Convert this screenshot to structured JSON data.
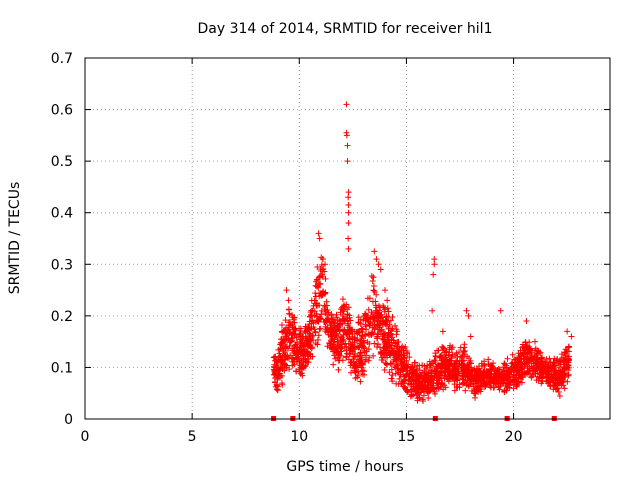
{
  "chart_data": {
    "type": "scatter",
    "title": "Day 314 of 2014, SRMTID for receiver hil1",
    "xlabel": "GPS time / hours",
    "ylabel": "SRMTID / TECUs",
    "xlim": [
      0,
      24.5
    ],
    "ylim": [
      0,
      0.7
    ],
    "xticks": [
      0,
      5,
      10,
      15,
      20
    ],
    "yticks": [
      0,
      0.1,
      0.2,
      0.3,
      0.4,
      0.5,
      0.6,
      0.7
    ],
    "grid": true,
    "color": "#ff0000",
    "marker": "+",
    "gap_markers_x": [
      8.8,
      9.7,
      16.35,
      19.7,
      21.9
    ],
    "envelope": [
      {
        "x": 8.8,
        "lo": 0.03,
        "hi": 0.14
      },
      {
        "x": 9.2,
        "lo": 0.05,
        "hi": 0.2
      },
      {
        "x": 9.6,
        "lo": 0.08,
        "hi": 0.24
      },
      {
        "x": 10.0,
        "lo": 0.06,
        "hi": 0.18
      },
      {
        "x": 10.4,
        "lo": 0.1,
        "hi": 0.2
      },
      {
        "x": 10.8,
        "lo": 0.12,
        "hi": 0.3
      },
      {
        "x": 11.1,
        "lo": 0.16,
        "hi": 0.33
      },
      {
        "x": 11.4,
        "lo": 0.12,
        "hi": 0.22
      },
      {
        "x": 11.8,
        "lo": 0.08,
        "hi": 0.2
      },
      {
        "x": 12.1,
        "lo": 0.12,
        "hi": 0.26
      },
      {
        "x": 12.5,
        "lo": 0.07,
        "hi": 0.2
      },
      {
        "x": 12.9,
        "lo": 0.06,
        "hi": 0.2
      },
      {
        "x": 13.4,
        "lo": 0.1,
        "hi": 0.3
      },
      {
        "x": 13.8,
        "lo": 0.09,
        "hi": 0.24
      },
      {
        "x": 14.3,
        "lo": 0.07,
        "hi": 0.22
      },
      {
        "x": 14.8,
        "lo": 0.05,
        "hi": 0.16
      },
      {
        "x": 15.3,
        "lo": 0.03,
        "hi": 0.12
      },
      {
        "x": 15.8,
        "lo": 0.03,
        "hi": 0.11
      },
      {
        "x": 16.3,
        "lo": 0.04,
        "hi": 0.13
      },
      {
        "x": 16.8,
        "lo": 0.06,
        "hi": 0.15
      },
      {
        "x": 17.3,
        "lo": 0.05,
        "hi": 0.14
      },
      {
        "x": 17.8,
        "lo": 0.05,
        "hi": 0.15
      },
      {
        "x": 18.2,
        "lo": 0.04,
        "hi": 0.1
      },
      {
        "x": 18.7,
        "lo": 0.05,
        "hi": 0.12
      },
      {
        "x": 19.2,
        "lo": 0.05,
        "hi": 0.11
      },
      {
        "x": 19.7,
        "lo": 0.04,
        "hi": 0.12
      },
      {
        "x": 20.1,
        "lo": 0.05,
        "hi": 0.13
      },
      {
        "x": 20.6,
        "lo": 0.08,
        "hi": 0.16
      },
      {
        "x": 21.1,
        "lo": 0.07,
        "hi": 0.14
      },
      {
        "x": 21.6,
        "lo": 0.06,
        "hi": 0.12
      },
      {
        "x": 22.1,
        "lo": 0.04,
        "hi": 0.12
      },
      {
        "x": 22.6,
        "lo": 0.06,
        "hi": 0.16
      }
    ],
    "outliers": [
      [
        12.2,
        0.61
      ],
      [
        12.2,
        0.555
      ],
      [
        12.22,
        0.55
      ],
      [
        12.25,
        0.53
      ],
      [
        12.25,
        0.5
      ],
      [
        12.3,
        0.44
      ],
      [
        12.28,
        0.43
      ],
      [
        12.3,
        0.415
      ],
      [
        12.3,
        0.4
      ],
      [
        12.3,
        0.38
      ],
      [
        12.28,
        0.35
      ],
      [
        12.3,
        0.33
      ],
      [
        10.9,
        0.36
      ],
      [
        10.95,
        0.35
      ],
      [
        11.1,
        0.31
      ],
      [
        11.2,
        0.3
      ],
      [
        16.3,
        0.31
      ],
      [
        16.3,
        0.3
      ],
      [
        16.25,
        0.28
      ],
      [
        13.5,
        0.325
      ],
      [
        13.6,
        0.31
      ],
      [
        13.7,
        0.3
      ],
      [
        13.8,
        0.29
      ],
      [
        14.0,
        0.25
      ],
      [
        14.1,
        0.23
      ],
      [
        16.2,
        0.21
      ],
      [
        17.8,
        0.21
      ],
      [
        17.9,
        0.2
      ],
      [
        19.4,
        0.21
      ],
      [
        20.6,
        0.19
      ],
      [
        16.7,
        0.17
      ],
      [
        18.0,
        0.16
      ],
      [
        21.0,
        0.15
      ],
      [
        22.5,
        0.17
      ],
      [
        22.7,
        0.16
      ],
      [
        9.4,
        0.25
      ],
      [
        9.5,
        0.23
      ]
    ],
    "point_count": 2300
  }
}
